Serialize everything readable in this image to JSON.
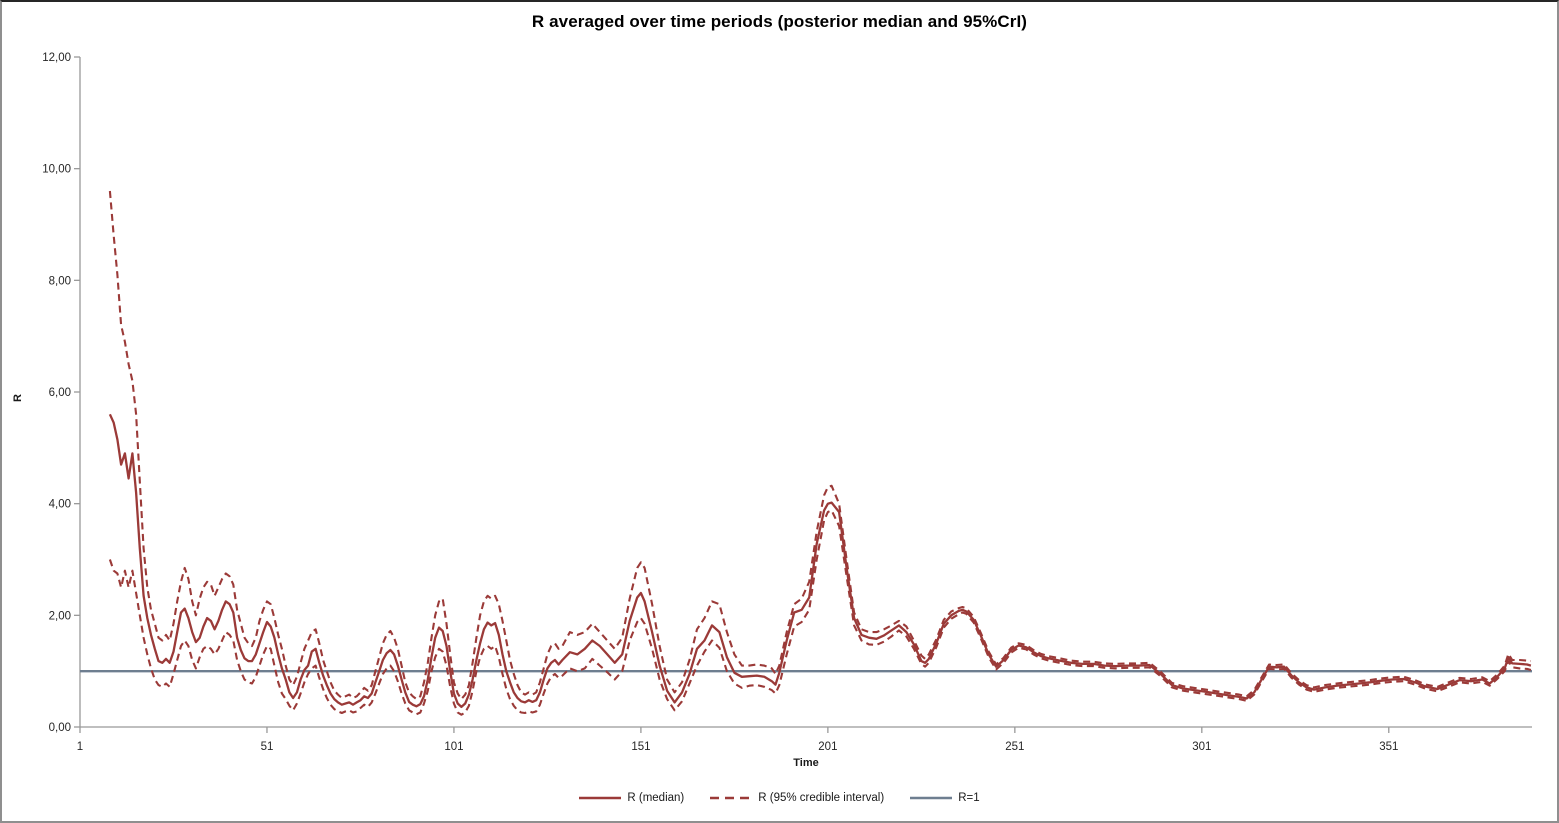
{
  "title": "R averaged over time periods (posterior median and 95%CrI)",
  "axes": {
    "x": {
      "label": "Time",
      "min": 1,
      "max": 389.3,
      "tick_values": [
        1,
        51,
        101,
        151,
        201,
        251,
        301,
        351
      ],
      "tick_labels": [
        "1",
        "51",
        "101",
        "151",
        "201",
        "251",
        "301",
        "351"
      ]
    },
    "y": {
      "label": "R",
      "min": 0,
      "max": 12,
      "tick_values": [
        0,
        2,
        4,
        6,
        8,
        10,
        12
      ],
      "tick_labels": [
        "0,00",
        "2,00",
        "4,00",
        "6,00",
        "8,00",
        "10,00",
        "12,00"
      ]
    }
  },
  "legend": {
    "items": [
      {
        "label": "R (median)",
        "style": "solid",
        "color": "#9B3A38"
      },
      {
        "label": "R (95% credible interval)",
        "style": "dashed",
        "color": "#9B3A38"
      },
      {
        "label": "R=1",
        "style": "solid",
        "color": "#6E7E90"
      }
    ]
  },
  "colors": {
    "series_red": "#9B3A38",
    "reference_gray": "#6E7E90",
    "axis": "#999999",
    "tick_text": "#262626",
    "background": "#FFFFFF"
  },
  "chart_data": {
    "type": "line",
    "title": "R averaged over time periods (posterior median and 95%CrI)",
    "xlabel": "Time",
    "ylabel": "R",
    "xlim": [
      1,
      389.3
    ],
    "ylim": [
      0,
      12
    ],
    "grid": false,
    "legend_position": "bottom",
    "y_tick_format": "comma-decimal",
    "series_meta": [
      {
        "name": "R (median)",
        "style": "solid",
        "color": "#9B3A38"
      },
      {
        "name": "R (95% credible interval)",
        "style": "dashed",
        "color": "#9B3A38",
        "note": "upper and lower bounds"
      },
      {
        "name": "R=1",
        "style": "solid",
        "color": "#6E7E90"
      }
    ],
    "reference_line": {
      "name": "R=1",
      "value": 1
    },
    "columns": [
      "time",
      "median",
      "lower95",
      "upper95"
    ],
    "rows": [
      [
        9,
        5.6,
        3.0,
        9.6
      ],
      [
        10,
        5.45,
        2.8,
        8.8
      ],
      [
        11,
        5.15,
        2.75,
        8.1
      ],
      [
        12,
        4.7,
        2.5,
        7.2
      ],
      [
        13,
        4.9,
        2.8,
        6.9
      ],
      [
        14,
        4.45,
        2.5,
        6.5
      ],
      [
        15,
        4.9,
        2.8,
        6.2
      ],
      [
        16,
        4.2,
        2.4,
        5.6
      ],
      [
        17,
        3.2,
        2.0,
        4.4
      ],
      [
        18,
        2.35,
        1.6,
        3.2
      ],
      [
        19,
        1.95,
        1.3,
        2.5
      ],
      [
        20,
        1.65,
        1.05,
        2.1
      ],
      [
        21,
        1.4,
        0.85,
        1.85
      ],
      [
        22,
        1.18,
        0.75,
        1.6
      ],
      [
        23,
        1.15,
        0.72,
        1.55
      ],
      [
        24,
        1.22,
        0.78,
        1.65
      ],
      [
        25,
        1.15,
        0.72,
        1.55
      ],
      [
        26,
        1.35,
        0.95,
        1.85
      ],
      [
        27,
        1.7,
        1.2,
        2.25
      ],
      [
        28,
        2.05,
        1.45,
        2.6
      ],
      [
        29,
        2.12,
        1.55,
        2.85
      ],
      [
        30,
        1.95,
        1.45,
        2.65
      ],
      [
        31,
        1.7,
        1.2,
        2.25
      ],
      [
        32,
        1.52,
        1.05,
        2.0
      ],
      [
        33,
        1.6,
        1.25,
        2.3
      ],
      [
        34,
        1.8,
        1.4,
        2.5
      ],
      [
        35,
        1.95,
        1.45,
        2.6
      ],
      [
        36,
        1.9,
        1.4,
        2.55
      ],
      [
        37,
        1.75,
        1.3,
        2.35
      ],
      [
        38,
        1.9,
        1.4,
        2.5
      ],
      [
        39,
        2.1,
        1.55,
        2.65
      ],
      [
        40,
        2.25,
        1.7,
        2.75
      ],
      [
        41,
        2.2,
        1.65,
        2.7
      ],
      [
        42,
        2.05,
        1.55,
        2.55
      ],
      [
        43,
        1.6,
        1.2,
        2.1
      ],
      [
        44,
        1.38,
        1.0,
        1.85
      ],
      [
        45,
        1.23,
        0.85,
        1.6
      ],
      [
        46,
        1.18,
        0.8,
        1.5
      ],
      [
        47,
        1.18,
        0.78,
        1.45
      ],
      [
        48,
        1.3,
        0.9,
        1.6
      ],
      [
        49,
        1.5,
        1.1,
        1.9
      ],
      [
        50,
        1.7,
        1.3,
        2.1
      ],
      [
        51,
        1.88,
        1.45,
        2.25
      ],
      [
        52,
        1.8,
        1.4,
        2.2
      ],
      [
        53,
        1.6,
        1.1,
        1.95
      ],
      [
        54,
        1.3,
        0.8,
        1.65
      ],
      [
        55,
        1.05,
        0.6,
        1.4
      ],
      [
        56,
        0.85,
        0.5,
        1.1
      ],
      [
        57,
        0.62,
        0.38,
        0.85
      ],
      [
        58,
        0.52,
        0.3,
        0.75
      ],
      [
        59,
        0.62,
        0.42,
        0.9
      ],
      [
        60,
        0.85,
        0.6,
        1.15
      ],
      [
        61,
        1.02,
        0.8,
        1.4
      ],
      [
        62,
        1.1,
        0.95,
        1.55
      ],
      [
        63,
        1.35,
        1.05,
        1.7
      ],
      [
        64,
        1.4,
        1.1,
        1.75
      ],
      [
        65,
        1.15,
        0.88,
        1.5
      ],
      [
        66,
        0.92,
        0.68,
        1.2
      ],
      [
        67,
        0.75,
        0.52,
        1.0
      ],
      [
        68,
        0.6,
        0.4,
        0.8
      ],
      [
        69,
        0.5,
        0.32,
        0.65
      ],
      [
        70,
        0.44,
        0.28,
        0.58
      ],
      [
        71,
        0.4,
        0.25,
        0.52
      ],
      [
        72,
        0.42,
        0.28,
        0.55
      ],
      [
        73,
        0.44,
        0.3,
        0.58
      ],
      [
        74,
        0.4,
        0.26,
        0.52
      ],
      [
        75,
        0.44,
        0.28,
        0.55
      ],
      [
        76,
        0.48,
        0.34,
        0.62
      ],
      [
        77,
        0.55,
        0.4,
        0.7
      ],
      [
        78,
        0.52,
        0.36,
        0.65
      ],
      [
        79,
        0.6,
        0.44,
        0.75
      ],
      [
        80,
        0.8,
        0.6,
        1.0
      ],
      [
        81,
        1.0,
        0.78,
        1.25
      ],
      [
        82,
        1.2,
        0.95,
        1.5
      ],
      [
        83,
        1.32,
        1.05,
        1.65
      ],
      [
        84,
        1.38,
        1.1,
        1.72
      ],
      [
        85,
        1.3,
        1.0,
        1.6
      ],
      [
        86,
        1.1,
        0.82,
        1.4
      ],
      [
        87,
        0.85,
        0.6,
        1.1
      ],
      [
        88,
        0.62,
        0.42,
        0.8
      ],
      [
        89,
        0.45,
        0.3,
        0.62
      ],
      [
        90,
        0.4,
        0.26,
        0.55
      ],
      [
        91,
        0.37,
        0.23,
        0.5
      ],
      [
        92,
        0.41,
        0.26,
        0.55
      ],
      [
        93,
        0.55,
        0.42,
        0.8
      ],
      [
        94,
        0.85,
        0.65,
        1.15
      ],
      [
        95,
        1.25,
        1.0,
        1.6
      ],
      [
        96,
        1.6,
        1.25,
        2.0
      ],
      [
        97,
        1.78,
        1.4,
        2.25
      ],
      [
        98,
        1.72,
        1.35,
        2.3
      ],
      [
        99,
        1.45,
        1.1,
        1.85
      ],
      [
        100,
        1.0,
        0.72,
        1.3
      ],
      [
        101,
        0.6,
        0.42,
        0.8
      ],
      [
        102,
        0.42,
        0.26,
        0.6
      ],
      [
        103,
        0.36,
        0.22,
        0.5
      ],
      [
        104,
        0.42,
        0.26,
        0.58
      ],
      [
        105,
        0.58,
        0.38,
        0.75
      ],
      [
        106,
        0.85,
        0.65,
        1.15
      ],
      [
        107,
        1.2,
        1.0,
        1.6
      ],
      [
        108,
        1.5,
        1.25,
        2.0
      ],
      [
        109,
        1.75,
        1.4,
        2.25
      ],
      [
        110,
        1.87,
        1.45,
        2.35
      ],
      [
        111,
        1.82,
        1.4,
        2.3
      ],
      [
        112,
        1.86,
        1.45,
        2.35
      ],
      [
        113,
        1.65,
        1.25,
        2.2
      ],
      [
        114,
        1.3,
        0.95,
        1.9
      ],
      [
        115,
        1.0,
        0.68,
        1.55
      ],
      [
        116,
        0.8,
        0.5,
        1.2
      ],
      [
        117,
        0.62,
        0.38,
        0.95
      ],
      [
        118,
        0.52,
        0.3,
        0.75
      ],
      [
        119,
        0.46,
        0.26,
        0.62
      ],
      [
        120,
        0.44,
        0.25,
        0.58
      ],
      [
        121,
        0.48,
        0.28,
        0.62
      ],
      [
        122,
        0.45,
        0.26,
        0.58
      ],
      [
        123,
        0.48,
        0.28,
        0.62
      ],
      [
        124,
        0.62,
        0.4,
        0.8
      ],
      [
        125,
        0.85,
        0.6,
        1.05
      ],
      [
        126,
        1.05,
        0.78,
        1.3
      ],
      [
        127,
        1.15,
        0.9,
        1.45
      ],
      [
        128,
        1.2,
        0.95,
        1.5
      ],
      [
        129,
        1.12,
        0.88,
        1.4
      ],
      [
        130,
        1.2,
        0.92,
        1.45
      ],
      [
        132,
        1.34,
        1.05,
        1.7
      ],
      [
        134,
        1.3,
        1.0,
        1.65
      ],
      [
        136,
        1.4,
        1.05,
        1.7
      ],
      [
        138,
        1.55,
        1.22,
        1.85
      ],
      [
        140,
        1.45,
        1.1,
        1.7
      ],
      [
        142,
        1.3,
        0.98,
        1.55
      ],
      [
        144,
        1.15,
        0.85,
        1.4
      ],
      [
        146,
        1.3,
        1.0,
        1.6
      ],
      [
        148,
        1.9,
        1.55,
        2.3
      ],
      [
        150,
        2.32,
        1.88,
        2.85
      ],
      [
        151,
        2.4,
        1.95,
        2.95
      ],
      [
        152,
        2.25,
        1.85,
        2.85
      ],
      [
        154,
        1.7,
        1.4,
        2.2
      ],
      [
        156,
        1.1,
        0.85,
        1.45
      ],
      [
        158,
        0.65,
        0.5,
        0.85
      ],
      [
        160,
        0.44,
        0.3,
        0.62
      ],
      [
        162,
        0.62,
        0.46,
        0.8
      ],
      [
        164,
        0.95,
        0.78,
        1.2
      ],
      [
        166,
        1.4,
        1.1,
        1.75
      ],
      [
        168,
        1.55,
        1.35,
        1.95
      ],
      [
        170,
        1.82,
        1.55,
        2.25
      ],
      [
        172,
        1.7,
        1.42,
        2.2
      ],
      [
        174,
        1.25,
        1.0,
        1.7
      ],
      [
        176,
        0.97,
        0.78,
        1.3
      ],
      [
        178,
        0.9,
        0.7,
        1.1
      ],
      [
        180,
        0.91,
        0.74,
        1.1
      ],
      [
        182,
        0.92,
        0.75,
        1.12
      ],
      [
        184,
        0.9,
        0.72,
        1.1
      ],
      [
        186,
        0.82,
        0.66,
        1.05
      ],
      [
        187,
        0.76,
        0.6,
        0.95
      ],
      [
        188,
        0.97,
        0.75,
        1.1
      ],
      [
        190,
        1.55,
        1.3,
        1.7
      ],
      [
        192,
        2.05,
        1.8,
        2.2
      ],
      [
        194,
        2.1,
        1.88,
        2.3
      ],
      [
        196,
        2.32,
        2.1,
        2.6
      ],
      [
        198,
        3.28,
        3.0,
        3.5
      ],
      [
        200,
        3.88,
        3.7,
        4.15
      ],
      [
        201,
        4.0,
        3.85,
        4.3
      ],
      [
        202,
        4.02,
        3.88,
        4.32
      ],
      [
        204,
        3.85,
        3.6,
        4.0
      ],
      [
        206,
        2.85,
        2.7,
        3.0
      ],
      [
        208,
        1.95,
        1.82,
        2.05
      ],
      [
        210,
        1.65,
        1.55,
        1.75
      ],
      [
        212,
        1.6,
        1.48,
        1.7
      ],
      [
        214,
        1.58,
        1.47,
        1.7
      ],
      [
        216,
        1.64,
        1.53,
        1.75
      ],
      [
        218,
        1.73,
        1.62,
        1.82
      ],
      [
        220,
        1.82,
        1.73,
        1.9
      ],
      [
        222,
        1.7,
        1.62,
        1.8
      ],
      [
        224,
        1.48,
        1.4,
        1.55
      ],
      [
        226,
        1.18,
        1.13,
        1.28
      ],
      [
        227,
        1.15,
        1.08,
        1.22
      ],
      [
        228,
        1.22,
        1.15,
        1.3
      ],
      [
        230,
        1.5,
        1.43,
        1.57
      ],
      [
        232,
        1.85,
        1.78,
        1.92
      ],
      [
        234,
        2.0,
        1.94,
        2.07
      ],
      [
        236,
        2.08,
        2.02,
        2.13
      ],
      [
        237,
        2.1,
        2.05,
        2.15
      ],
      [
        238,
        2.07,
        2.03,
        2.13
      ],
      [
        240,
        1.92,
        1.87,
        1.97
      ],
      [
        242,
        1.62,
        1.57,
        1.67
      ],
      [
        244,
        1.3,
        1.25,
        1.35
      ],
      [
        246,
        1.08,
        1.03,
        1.12
      ],
      [
        248,
        1.2,
        1.15,
        1.24
      ],
      [
        250,
        1.38,
        1.33,
        1.42
      ],
      [
        252,
        1.46,
        1.42,
        1.5
      ],
      [
        254,
        1.43,
        1.39,
        1.47
      ],
      [
        256,
        1.34,
        1.3,
        1.38
      ],
      [
        258,
        1.27,
        1.23,
        1.31
      ],
      [
        260,
        1.23,
        1.19,
        1.27
      ],
      [
        263,
        1.19,
        1.15,
        1.23
      ],
      [
        266,
        1.15,
        1.11,
        1.19
      ],
      [
        269,
        1.13,
        1.09,
        1.17
      ],
      [
        272,
        1.13,
        1.09,
        1.17
      ],
      [
        275,
        1.1,
        1.06,
        1.14
      ],
      [
        278,
        1.09,
        1.05,
        1.13
      ],
      [
        281,
        1.1,
        1.06,
        1.14
      ],
      [
        284,
        1.1,
        1.06,
        1.14
      ],
      [
        287,
        1.11,
        1.07,
        1.15
      ],
      [
        290,
        0.95,
        0.91,
        0.99
      ],
      [
        293,
        0.75,
        0.71,
        0.79
      ],
      [
        296,
        0.69,
        0.65,
        0.73
      ],
      [
        299,
        0.66,
        0.62,
        0.7
      ],
      [
        302,
        0.63,
        0.59,
        0.67
      ],
      [
        305,
        0.6,
        0.56,
        0.64
      ],
      [
        308,
        0.57,
        0.53,
        0.61
      ],
      [
        311,
        0.54,
        0.5,
        0.58
      ],
      [
        313,
        0.51,
        0.47,
        0.55
      ],
      [
        315,
        0.62,
        0.58,
        0.66
      ],
      [
        317,
        0.85,
        0.81,
        0.89
      ],
      [
        319,
        1.08,
        1.04,
        1.12
      ],
      [
        321,
        1.07,
        1.03,
        1.11
      ],
      [
        323,
        1.08,
        1.04,
        1.12
      ],
      [
        325,
        0.92,
        0.88,
        0.96
      ],
      [
        327,
        0.8,
        0.76,
        0.84
      ],
      [
        329,
        0.71,
        0.67,
        0.75
      ],
      [
        331,
        0.67,
        0.63,
        0.71
      ],
      [
        334,
        0.71,
        0.67,
        0.75
      ],
      [
        337,
        0.74,
        0.7,
        0.78
      ],
      [
        340,
        0.76,
        0.72,
        0.8
      ],
      [
        343,
        0.78,
        0.74,
        0.82
      ],
      [
        346,
        0.8,
        0.76,
        0.84
      ],
      [
        349,
        0.83,
        0.79,
        0.87
      ],
      [
        352,
        0.85,
        0.81,
        0.89
      ],
      [
        355,
        0.86,
        0.82,
        0.9
      ],
      [
        358,
        0.8,
        0.76,
        0.84
      ],
      [
        361,
        0.72,
        0.68,
        0.76
      ],
      [
        364,
        0.68,
        0.64,
        0.72
      ],
      [
        367,
        0.76,
        0.72,
        0.8
      ],
      [
        370,
        0.84,
        0.8,
        0.88
      ],
      [
        373,
        0.82,
        0.78,
        0.86
      ],
      [
        376,
        0.85,
        0.81,
        0.89
      ],
      [
        378,
        0.78,
        0.74,
        0.82
      ],
      [
        380,
        0.9,
        0.86,
        0.94
      ],
      [
        382,
        1.05,
        1.0,
        1.1
      ],
      [
        383,
        1.25,
        1.18,
        1.31
      ],
      [
        384,
        1.14,
        1.07,
        1.2
      ],
      [
        386,
        1.13,
        1.05,
        1.2
      ],
      [
        388,
        1.12,
        1.04,
        1.19
      ],
      [
        389,
        1.1,
        1.02,
        1.18
      ]
    ]
  }
}
